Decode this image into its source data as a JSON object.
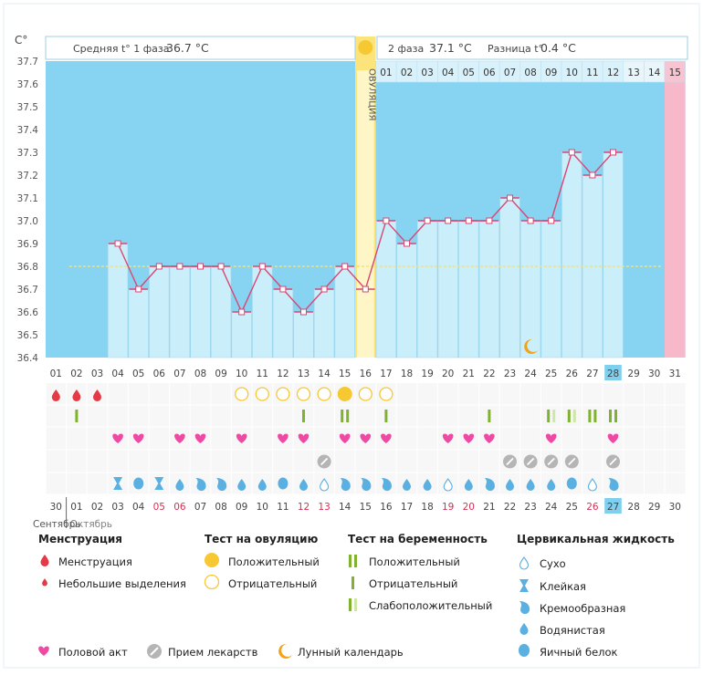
{
  "axis": {
    "unit": "C°",
    "y_ticks": [
      "37.7",
      "37.6",
      "37.5",
      "37.4",
      "37.3",
      "37.2",
      "37.1",
      "37.0",
      "36.9",
      "36.8",
      "36.7",
      "36.6",
      "36.5",
      "36.4"
    ]
  },
  "header": {
    "phase1_label": "Средняя t° 1 фаза",
    "phase1_value": "36.7 °C",
    "phase2_label": "2 фаза",
    "phase2_value": "37.1 °C",
    "diff_label": "Разница t°",
    "diff_value": "0.4 °C"
  },
  "ovulation_label": "ОВУЛЯЦИЯ",
  "phase2_days": [
    "01",
    "02",
    "03",
    "04",
    "05",
    "06",
    "07",
    "08",
    "09",
    "10",
    "11",
    "12",
    "13",
    "14",
    "15"
  ],
  "dates": [
    "01",
    "02",
    "03",
    "04",
    "05",
    "06",
    "07",
    "08",
    "09",
    "10",
    "11",
    "12",
    "13",
    "14",
    "15",
    "16",
    "17",
    "18",
    "19",
    "20",
    "21",
    "22",
    "23",
    "24",
    "25",
    "26",
    "27",
    "28",
    "29",
    "30",
    "31"
  ],
  "dates_highlight_index": 27,
  "bottom_dates": [
    "30",
    "01",
    "02",
    "03",
    "04",
    "05",
    "06",
    "07",
    "08",
    "09",
    "10",
    "11",
    "12",
    "13",
    "14",
    "15",
    "16",
    "17",
    "18",
    "19",
    "20",
    "21",
    "22",
    "23",
    "24",
    "25",
    "26",
    "27",
    "28",
    "29",
    "30"
  ],
  "bottom_red": [
    5,
    6,
    12,
    13,
    19,
    20,
    26
  ],
  "bottom_highlight_index": 27,
  "month_label": "Сентябрь",
  "month_label2": "Октябрь",
  "chart_data": {
    "type": "line",
    "title": "",
    "xlabel": "",
    "ylabel": "C°",
    "ylim": [
      36.4,
      37.7
    ],
    "coverline": 36.8,
    "ovulation_day": 16,
    "x": [
      4,
      5,
      6,
      7,
      8,
      9,
      10,
      11,
      12,
      13,
      14,
      15,
      16,
      17,
      18,
      19,
      20,
      21,
      22,
      23,
      24,
      25,
      26,
      27,
      28
    ],
    "values": [
      36.9,
      36.7,
      36.8,
      36.8,
      36.8,
      36.8,
      36.6,
      36.8,
      36.7,
      36.6,
      36.7,
      36.8,
      36.7,
      37.0,
      36.9,
      37.0,
      37.0,
      37.0,
      37.0,
      37.1,
      37.0,
      37.0,
      37.3,
      37.2,
      37.3
    ]
  },
  "markers": {
    "menstruation": [
      1,
      2,
      3
    ],
    "ovulation_test_negative": [
      10,
      11,
      12,
      13,
      14,
      16,
      17
    ],
    "ovulation_test_positive": [
      15
    ],
    "pregnancy_negative": [
      2,
      13,
      17,
      22
    ],
    "pregnancy_positive": [
      15,
      27,
      28
    ],
    "pregnancy_weak": [
      25,
      26
    ],
    "intercourse": [
      4,
      5,
      7,
      8,
      10,
      12,
      13,
      15,
      16,
      17,
      20,
      21,
      22,
      25,
      28
    ],
    "medication": [
      14,
      23,
      24,
      25,
      26,
      28
    ],
    "fluid": [
      {
        "day": 4,
        "type": "sticky"
      },
      {
        "day": 5,
        "type": "eggwhite"
      },
      {
        "day": 6,
        "type": "sticky"
      },
      {
        "day": 7,
        "type": "watery"
      },
      {
        "day": 8,
        "type": "creamy"
      },
      {
        "day": 9,
        "type": "creamy"
      },
      {
        "day": 10,
        "type": "watery"
      },
      {
        "day": 11,
        "type": "watery"
      },
      {
        "day": 12,
        "type": "eggwhite"
      },
      {
        "day": 13,
        "type": "watery"
      },
      {
        "day": 14,
        "type": "dry"
      },
      {
        "day": 15,
        "type": "creamy"
      },
      {
        "day": 16,
        "type": "creamy"
      },
      {
        "day": 17,
        "type": "creamy"
      },
      {
        "day": 18,
        "type": "watery"
      },
      {
        "day": 19,
        "type": "watery"
      },
      {
        "day": 20,
        "type": "dry"
      },
      {
        "day": 21,
        "type": "watery"
      },
      {
        "day": 22,
        "type": "creamy"
      },
      {
        "day": 23,
        "type": "watery"
      },
      {
        "day": 24,
        "type": "watery"
      },
      {
        "day": 25,
        "type": "watery"
      },
      {
        "day": 26,
        "type": "eggwhite"
      },
      {
        "day": 27,
        "type": "dry"
      },
      {
        "day": 28,
        "type": "creamy"
      }
    ],
    "moon_day": 24
  },
  "legend": {
    "menstruation_title": "Менструация",
    "menstruation": "Менструация",
    "spotting": "Небольшие выделения",
    "ovtest_title": "Тест на овуляцию",
    "ovtest_positive": "Положительный",
    "ovtest_negative": "Отрицательный",
    "preg_title": "Тест на беременность",
    "preg_positive": "Положительный",
    "preg_negative": "Отрицательный",
    "preg_weak": "Слабоположительный",
    "fluid_title": "Цервикальная жидкость",
    "fluid_dry": "Сухо",
    "fluid_sticky": "Клейкая",
    "fluid_creamy": "Кремообразная",
    "fluid_watery": "Водянистая",
    "fluid_eggwhite": "Яичный белок",
    "intercourse": "Половой акт",
    "medication": "Прием лекарств",
    "moon": "Лунный календарь"
  },
  "colors": {
    "sky": "#87d3f2",
    "bar": "#cbeefb",
    "line": "#d94673",
    "ovulation": "#fce47a",
    "pink": "#f7b8c9",
    "heart": "#ee4aa4",
    "drop_red": "#e53945",
    "drop_blue": "#5ab0e0",
    "green": "#7fb32e",
    "yellow": "#f6c832",
    "moon": "#f2a31a",
    "gray": "#b5b5b5"
  }
}
